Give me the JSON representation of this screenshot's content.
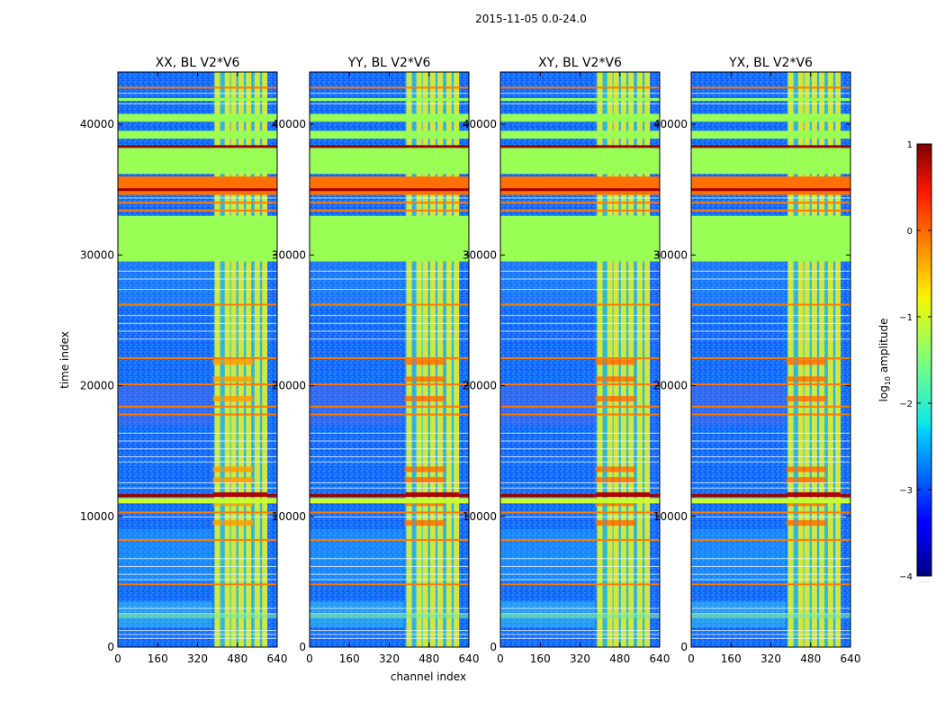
{
  "suptitle": "2015-11-05 0.0-24.0",
  "chart_data": {
    "type": "heatmap",
    "xlabel": "channel index",
    "ylabel": "time index",
    "xlim": [
      0,
      640
    ],
    "ylim": [
      0,
      44000
    ],
    "xticks": [
      "0",
      "160",
      "320",
      "480",
      "640"
    ],
    "xtick_values": [
      0,
      160,
      320,
      480,
      640
    ],
    "yticks": [
      "0",
      "10000",
      "20000",
      "30000",
      "40000"
    ],
    "ytick_values": [
      0,
      10000,
      20000,
      30000,
      40000
    ],
    "panels": [
      {
        "title": "XX, BL V2*V6"
      },
      {
        "title": "YY, BL V2*V6"
      },
      {
        "title": "XY, BL V2*V6"
      },
      {
        "title": "YX, BL V2*V6"
      }
    ],
    "colorbar": {
      "label": "log",
      "label_sub": "10",
      "label_rest": " amplitude",
      "range": [
        -4,
        1
      ],
      "ticks": [
        "−4",
        "−3",
        "−2",
        "−1",
        "0",
        "1"
      ],
      "tick_values": [
        -4,
        -3,
        -2,
        -1,
        0,
        1
      ],
      "colormap": "jet",
      "extra_label": "......"
    },
    "features": {
      "flagged_time_ranges": [
        [
          29500,
          33000
        ],
        [
          36200,
          38200
        ],
        [
          38900,
          39500
        ],
        [
          40200,
          40800
        ]
      ],
      "bright_channel_band": [
        385,
        600
      ],
      "bright_channels": [
        400,
        440,
        465,
        495,
        525,
        560,
        590
      ],
      "strong_rfi_rows": [
        11600,
        35000,
        38300
      ],
      "orange_rows": [
        4800,
        8200,
        10300,
        17800,
        18400,
        20100,
        22100,
        26200,
        33400,
        34000,
        42800
      ]
    }
  }
}
